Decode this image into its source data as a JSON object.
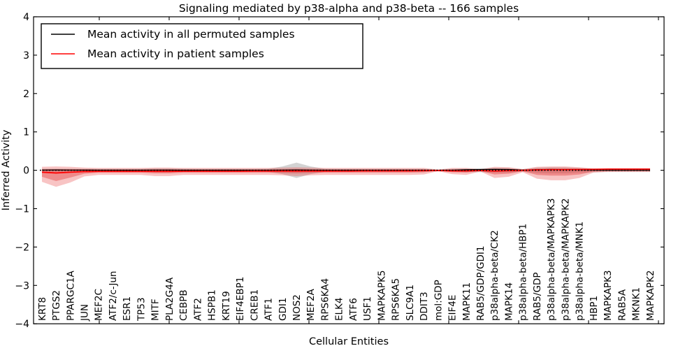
{
  "title": "Signaling mediated by p38-alpha and p38-beta -- 166 samples",
  "chart_data": {
    "type": "line",
    "title": "Signaling mediated by p38-alpha and p38-beta -- 166 samples",
    "xlabel": "Cellular Entities",
    "ylabel": "Inferred Activity",
    "ylim": [
      -4,
      4
    ],
    "yticks": [
      -4,
      -3,
      -2,
      -1,
      0,
      1,
      2,
      3,
      4
    ],
    "grid": false,
    "legend_position": "upper-left",
    "frame": "closed-box-inward-ticks",
    "categories": [
      "KRT8",
      "PTGS2",
      "PPARGC1A",
      "JUN",
      "MEF2C",
      "ATF2/c-Jun",
      "ESR1",
      "TP53",
      "MITF",
      "PLA2G4A",
      "CEBPB",
      "ATF2",
      "HSPB1",
      "KRT19",
      "EIF4EBP1",
      "CREB1",
      "ATF1",
      "GDI1",
      "NOS2",
      "MEF2A",
      "RPS6KA4",
      "ELK4",
      "ATF6",
      "USF1",
      "MAPKAPK5",
      "RPS6KA5",
      "SLC9A1",
      "DDIT3",
      "mol:GDP",
      "EIF4E",
      "MAPK11",
      "RAB5/GDP/GDI1",
      "p38alpha-beta/CK2",
      "MAPK14",
      "p38alpha-beta/HBP1",
      "RAB5/GDP",
      "p38alpha-beta/MAPKAPK3",
      "p38alpha-beta/MAPKAPK2",
      "p38alpha-beta/MNK1",
      "HBP1",
      "MAPKAPK3",
      "RAB5A",
      "MKNK1",
      "MAPKAPK2"
    ],
    "series": [
      {
        "name": "Mean activity in all permuted samples",
        "color": "#000000",
        "style": "solid",
        "values": [
          0.005,
          0.008,
          0.005,
          0.004,
          0.003,
          0.003,
          0.002,
          0.003,
          0.005,
          0.004,
          0.003,
          0.002,
          0.002,
          0.003,
          0.002,
          0.002,
          0.003,
          0.005,
          0.008,
          0.005,
          0.003,
          0.002,
          0.002,
          0.002,
          0.003,
          0.002,
          0.002,
          0.002,
          0.001,
          0.002,
          0.015,
          0.02,
          0.025,
          0.02,
          0.005,
          0.015,
          0.02,
          0.015,
          0.01,
          0.005,
          0.004,
          0.003,
          0.003,
          0.003
        ]
      },
      {
        "name": "Mean activity in patient samples",
        "color": "#ff0000",
        "style": "solid",
        "values": [
          -0.05,
          -0.07,
          -0.05,
          -0.035,
          -0.03,
          -0.03,
          -0.03,
          -0.03,
          -0.03,
          -0.03,
          -0.025,
          -0.025,
          -0.025,
          -0.025,
          -0.025,
          -0.02,
          -0.02,
          -0.02,
          -0.02,
          -0.02,
          -0.02,
          -0.02,
          -0.02,
          -0.015,
          -0.015,
          -0.015,
          -0.015,
          -0.01,
          -0.005,
          -0.015,
          -0.015,
          -0.005,
          -0.02,
          -0.01,
          0,
          0.01,
          0.015,
          0.015,
          0.02,
          0.025,
          0.03,
          0.03,
          0.03,
          0.03
        ]
      }
    ],
    "zero_reference_line": {
      "style": "dotted",
      "color": "#000000",
      "value": 0
    },
    "bands": [
      {
        "name": "permuted-std-band",
        "color": "rgba(110,110,110,0.30)",
        "upper": [
          0.04,
          0.04,
          0.04,
          0.035,
          0.035,
          0.035,
          0.035,
          0.035,
          0.05,
          0.05,
          0.04,
          0.035,
          0.035,
          0.035,
          0.035,
          0.035,
          0.04,
          0.1,
          0.2,
          0.1,
          0.04,
          0.035,
          0.035,
          0.035,
          0.035,
          0.035,
          0.035,
          0.035,
          0.02,
          0.035,
          0.05,
          0.05,
          0.06,
          0.06,
          0.03,
          0.07,
          0.08,
          0.08,
          0.06,
          0.05,
          0.045,
          0.045,
          0.045,
          0.045
        ],
        "lower": [
          -0.04,
          -0.04,
          -0.04,
          -0.035,
          -0.035,
          -0.035,
          -0.035,
          -0.035,
          -0.05,
          -0.05,
          -0.04,
          -0.035,
          -0.035,
          -0.035,
          -0.035,
          -0.035,
          -0.04,
          -0.1,
          -0.2,
          -0.1,
          -0.04,
          -0.035,
          -0.035,
          -0.035,
          -0.035,
          -0.035,
          -0.035,
          -0.035,
          -0.02,
          -0.035,
          -0.05,
          -0.05,
          -0.06,
          -0.06,
          -0.03,
          -0.07,
          -0.08,
          -0.08,
          -0.06,
          -0.05,
          -0.045,
          -0.045,
          -0.045,
          -0.045
        ]
      },
      {
        "name": "patient-outer-band",
        "color": "rgba(235,85,85,0.35)",
        "upper": [
          0.09,
          0.1,
          0.09,
          0.07,
          0.06,
          0.06,
          0.06,
          0.06,
          0.07,
          0.07,
          0.06,
          0.06,
          0.06,
          0.06,
          0.06,
          0.06,
          0.06,
          0.07,
          0.08,
          0.07,
          0.06,
          0.06,
          0.06,
          0.06,
          0.06,
          0.06,
          0.06,
          0.06,
          0.02,
          0.06,
          0.06,
          0.025,
          0.09,
          0.08,
          0.03,
          0.09,
          0.1,
          0.1,
          0.08,
          0.04,
          0.035,
          0.035,
          0.035,
          0.035
        ],
        "lower": [
          -0.3,
          -0.43,
          -0.32,
          -0.16,
          -0.12,
          -0.12,
          -0.12,
          -0.12,
          -0.15,
          -0.15,
          -0.12,
          -0.12,
          -0.12,
          -0.12,
          -0.12,
          -0.12,
          -0.12,
          -0.13,
          -0.15,
          -0.13,
          -0.12,
          -0.12,
          -0.12,
          -0.12,
          -0.12,
          -0.12,
          -0.12,
          -0.11,
          -0.025,
          -0.1,
          -0.12,
          -0.03,
          -0.2,
          -0.17,
          -0.05,
          -0.22,
          -0.26,
          -0.26,
          -0.2,
          -0.06,
          -0.04,
          -0.04,
          -0.04,
          -0.04
        ]
      },
      {
        "name": "patient-inner-band",
        "color": "rgba(225,55,55,0.40)",
        "upper": [
          0.03,
          0.03,
          0.03,
          0.03,
          0.025,
          0.025,
          0.025,
          0.025,
          0.03,
          0.03,
          0.025,
          0.025,
          0.025,
          0.025,
          0.025,
          0.025,
          0.025,
          0.03,
          0.035,
          0.03,
          0.025,
          0.025,
          0.025,
          0.025,
          0.025,
          0.025,
          0.025,
          0.025,
          0.012,
          0.025,
          0.025,
          0.015,
          0.04,
          0.04,
          0.018,
          0.045,
          0.05,
          0.05,
          0.04,
          0.022,
          0.02,
          0.02,
          0.02,
          0.02
        ],
        "lower": [
          -0.17,
          -0.28,
          -0.19,
          -0.09,
          -0.06,
          -0.06,
          -0.06,
          -0.06,
          -0.08,
          -0.08,
          -0.06,
          -0.06,
          -0.06,
          -0.06,
          -0.06,
          -0.06,
          -0.06,
          -0.07,
          -0.08,
          -0.07,
          -0.06,
          -0.06,
          -0.06,
          -0.06,
          -0.06,
          -0.06,
          -0.06,
          -0.055,
          -0.012,
          -0.05,
          -0.06,
          -0.018,
          -0.11,
          -0.09,
          -0.028,
          -0.12,
          -0.14,
          -0.14,
          -0.11,
          -0.035,
          -0.025,
          -0.025,
          -0.025,
          -0.025
        ]
      }
    ]
  },
  "legend": {
    "entries": [
      {
        "label": "Mean activity in all permuted samples",
        "color": "#000000"
      },
      {
        "label": "Mean activity in patient samples",
        "color": "#ff0000"
      }
    ]
  },
  "colors": {
    "patient_line": "#ff0000",
    "permuted_line": "#000000",
    "band_pink": "#f2b6b4",
    "band_dark_pink": "#ef9a97",
    "axis": "#000000",
    "background": "#ffffff"
  }
}
